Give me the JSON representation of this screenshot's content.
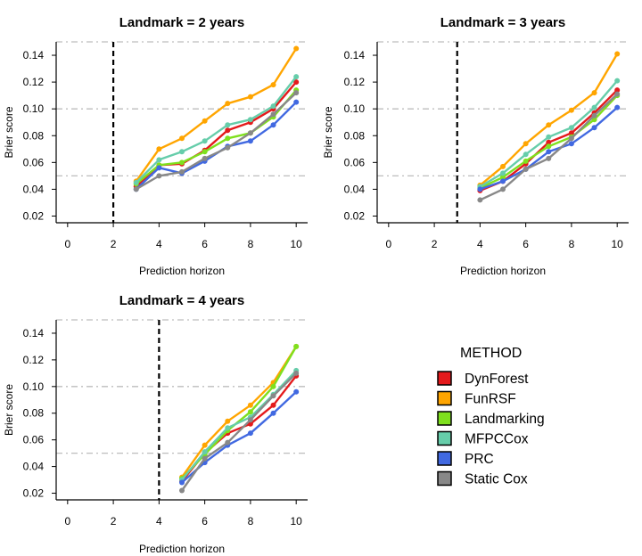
{
  "chart_data": {
    "type": "line",
    "legend": {
      "title": "METHOD",
      "items": [
        {
          "name": "DynForest",
          "color": "#e41a1c"
        },
        {
          "name": "FunRSF",
          "color": "#ffa500"
        },
        {
          "name": "Landmarking",
          "color": "#7fe01e"
        },
        {
          "name": "MFPCCox",
          "color": "#66cdaa"
        },
        {
          "name": "PRC",
          "color": "#4169e1"
        },
        {
          "name": "Static Cox",
          "color": "#888888"
        }
      ]
    },
    "panels": [
      {
        "title": "Landmark = 2 years",
        "xlabel": "Prediction horizon",
        "ylabel": "Brier score",
        "landmark": 2,
        "xlim": [
          -0.5,
          10.5
        ],
        "ylim": [
          0.015,
          0.15
        ],
        "xticks": [
          "0",
          "2",
          "4",
          "6",
          "8",
          "10"
        ],
        "yticks": [
          "0.02",
          "0.04",
          "0.06",
          "0.08",
          "0.10",
          "0.12",
          "0.14"
        ],
        "hlines": [
          0.05,
          0.1,
          0.15
        ],
        "x": [
          3,
          4,
          5,
          6,
          7,
          8,
          9,
          10
        ],
        "series": [
          {
            "name": "DynForest",
            "values": [
              0.042,
              0.058,
              0.059,
              0.069,
              0.084,
              0.09,
              0.1,
              0.12
            ]
          },
          {
            "name": "FunRSF",
            "values": [
              0.046,
              0.07,
              0.078,
              0.091,
              0.104,
              0.109,
              0.118,
              0.145
            ]
          },
          {
            "name": "Landmarking",
            "values": [
              0.044,
              0.058,
              0.06,
              0.068,
              0.078,
              0.082,
              0.094,
              0.114
            ]
          },
          {
            "name": "MFPCCox",
            "values": [
              0.045,
              0.062,
              0.068,
              0.076,
              0.088,
              0.092,
              0.102,
              0.124
            ]
          },
          {
            "name": "PRC",
            "values": [
              0.04,
              0.056,
              0.052,
              0.061,
              0.072,
              0.076,
              0.088,
              0.105
            ]
          },
          {
            "name": "Static Cox",
            "values": [
              0.04,
              0.05,
              0.053,
              0.063,
              0.071,
              0.082,
              0.096,
              0.112
            ]
          }
        ]
      },
      {
        "title": "Landmark = 3 years",
        "xlabel": "Prediction horizon",
        "ylabel": "Brier score",
        "landmark": 3,
        "xlim": [
          -0.5,
          10.5
        ],
        "ylim": [
          0.015,
          0.15
        ],
        "xticks": [
          "0",
          "2",
          "4",
          "6",
          "8",
          "10"
        ],
        "yticks": [
          "0.02",
          "0.04",
          "0.06",
          "0.08",
          "0.10",
          "0.12",
          "0.14"
        ],
        "hlines": [
          0.05,
          0.1,
          0.15
        ],
        "x": [
          4,
          5,
          6,
          7,
          8,
          9,
          10
        ],
        "series": [
          {
            "name": "DynForest",
            "values": [
              0.039,
              0.046,
              0.059,
              0.075,
              0.082,
              0.097,
              0.114
            ]
          },
          {
            "name": "FunRSF",
            "values": [
              0.043,
              0.057,
              0.074,
              0.088,
              0.099,
              0.112,
              0.141
            ]
          },
          {
            "name": "Landmarking",
            "values": [
              0.041,
              0.049,
              0.061,
              0.072,
              0.079,
              0.092,
              0.11
            ]
          },
          {
            "name": "MFPCCox",
            "values": [
              0.042,
              0.052,
              0.066,
              0.079,
              0.086,
              0.101,
              0.121
            ]
          },
          {
            "name": "PRC",
            "values": [
              0.04,
              0.046,
              0.055,
              0.068,
              0.074,
              0.086,
              0.101
            ]
          },
          {
            "name": "Static Cox",
            "values": [
              0.032,
              0.04,
              0.055,
              0.063,
              0.078,
              0.095,
              0.111
            ]
          }
        ]
      },
      {
        "title": "Landmark = 4 years",
        "xlabel": "Prediction horizon",
        "ylabel": "Brier score",
        "landmark": 4,
        "xlim": [
          -0.5,
          10.5
        ],
        "ylim": [
          0.015,
          0.15
        ],
        "xticks": [
          "0",
          "2",
          "4",
          "6",
          "8",
          "10"
        ],
        "yticks": [
          "0.02",
          "0.04",
          "0.06",
          "0.08",
          "0.10",
          "0.12",
          "0.14"
        ],
        "hlines": [
          0.05,
          0.1,
          0.15
        ],
        "x": [
          5,
          6,
          7,
          8,
          9,
          10
        ],
        "series": [
          {
            "name": "DynForest",
            "values": [
              0.029,
              0.05,
              0.065,
              0.072,
              0.086,
              0.108
            ]
          },
          {
            "name": "FunRSF",
            "values": [
              0.032,
              0.056,
              0.074,
              0.086,
              0.103,
              0.13
            ]
          },
          {
            "name": "Landmarking",
            "values": [
              0.031,
              0.049,
              0.067,
              0.081,
              0.1,
              0.13
            ]
          },
          {
            "name": "MFPCCox",
            "values": [
              0.03,
              0.051,
              0.069,
              0.077,
              0.094,
              0.112
            ]
          },
          {
            "name": "PRC",
            "values": [
              0.028,
              0.043,
              0.056,
              0.065,
              0.08,
              0.096
            ]
          },
          {
            "name": "Static Cox",
            "values": [
              0.022,
              0.046,
              0.058,
              0.075,
              0.093,
              0.11
            ]
          }
        ]
      }
    ]
  }
}
